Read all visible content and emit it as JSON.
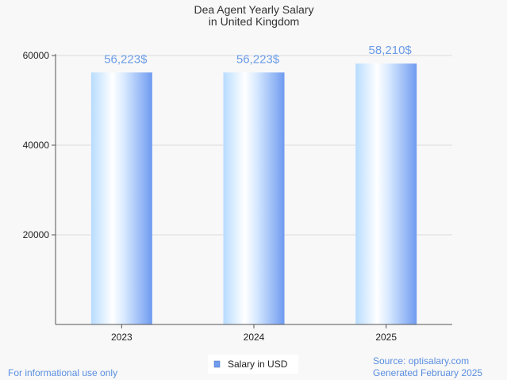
{
  "chart_data": {
    "type": "bar",
    "title": [
      "Dea Agent Yearly Salary",
      "in United Kingdom"
    ],
    "categories": [
      "2023",
      "2024",
      "2025"
    ],
    "series": [
      {
        "name": "Salary in USD",
        "values": [
          56223,
          56223,
          58210
        ]
      }
    ],
    "data_labels": [
      "56,223$",
      "56,223$",
      "58,210$"
    ],
    "y_ticks": [
      20000,
      40000,
      60000
    ],
    "ylim": [
      0,
      60000
    ],
    "grid": true,
    "legend": "bottom-center",
    "colors": {
      "bar_light": "#ffffff",
      "bar_mid": "#b8dcff",
      "bar_dark": "#6f9bf0",
      "label": "#6b9be6"
    }
  },
  "footer": {
    "left": "For informational use only",
    "source": "Source: optisalary.com",
    "generated": "Generated February 2025"
  }
}
